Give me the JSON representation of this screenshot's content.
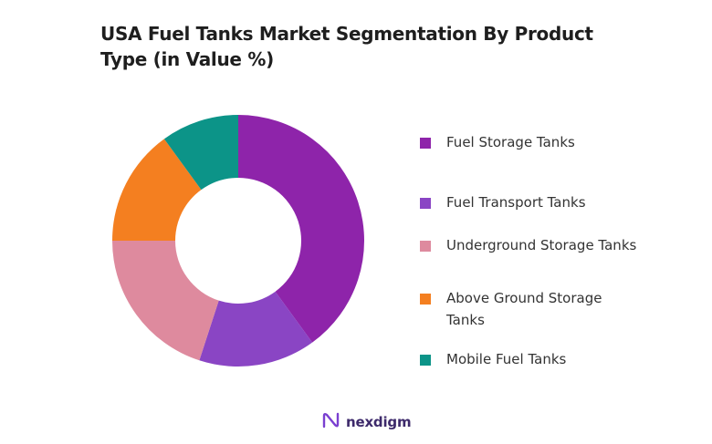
{
  "chart_data": {
    "type": "pie",
    "title": "USA Fuel Tanks Market Segmentation By Product Type (in Value %)",
    "series": [
      {
        "name": "Fuel Storage Tanks",
        "value": 40,
        "color": "#8e24aa"
      },
      {
        "name": "Fuel Transport Tanks",
        "value": 15,
        "color": "#8a45c4"
      },
      {
        "name": "Underground Storage Tanks",
        "value": 20,
        "color": "#de8a9e"
      },
      {
        "name": "Above Ground Storage Tanks",
        "value": 15,
        "color": "#f47f20"
      },
      {
        "name": "Mobile Fuel Tanks",
        "value": 10,
        "color": "#0c9488"
      }
    ],
    "donut": true,
    "legend_position": "right"
  },
  "brand": {
    "name": "nexdigm",
    "color": "#3d2a6b",
    "icon": "nexdigm-logo-icon"
  }
}
